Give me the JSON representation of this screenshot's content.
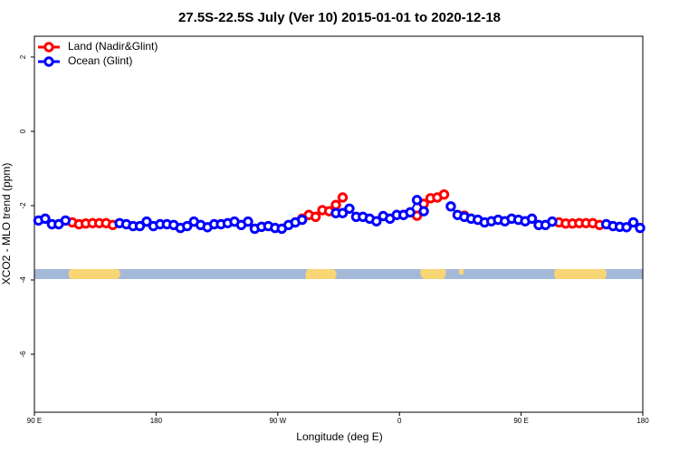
{
  "chart_data": {
    "type": "line",
    "title": "27.5S-22.5S July (Ver 10)   2015-01-01 to 2020-12-18",
    "x_label": "Longitude (deg E)",
    "y_label": "XCO2 - MLO trend (ppm)",
    "x": [
      93,
      98,
      103,
      108,
      113,
      118,
      123,
      128,
      133,
      138,
      143,
      148,
      153,
      158,
      163,
      168,
      173,
      178,
      183,
      188,
      193,
      198,
      203,
      208,
      213,
      218,
      223,
      228,
      233,
      238,
      243,
      248,
      253,
      258,
      263,
      268,
      273,
      278,
      283,
      288,
      293,
      298,
      303,
      308,
      313,
      318,
      323,
      328,
      333,
      338,
      343,
      348,
      353,
      358,
      363,
      368,
      373,
      378,
      383,
      388,
      393,
      398,
      403,
      408,
      413,
      418,
      423,
      428,
      433,
      438,
      443,
      448,
      453,
      458,
      463,
      468,
      473,
      478,
      483,
      488,
      493,
      498,
      503,
      508,
      513,
      518,
      523,
      528,
      533,
      538
    ],
    "series": [
      {
        "name": "Land (Nadir&Glint)",
        "color": "#ff0000",
        "values": [
          null,
          null,
          null,
          null,
          null,
          -2.45,
          -2.5,
          -2.48,
          -2.47,
          -2.47,
          -2.47,
          -2.52,
          null,
          null,
          null,
          null,
          null,
          null,
          null,
          null,
          null,
          null,
          null,
          null,
          null,
          null,
          null,
          null,
          null,
          null,
          null,
          null,
          null,
          null,
          null,
          null,
          null,
          null,
          null,
          -2.35,
          -2.25,
          -2.3,
          -2.12,
          -2.15,
          -1.98,
          -1.78,
          null,
          null,
          null,
          null,
          null,
          null,
          null,
          null,
          null,
          null,
          -2.27,
          -1.95,
          -1.8,
          -1.78,
          -1.7,
          null,
          null,
          -2.27,
          null,
          null,
          null,
          null,
          null,
          null,
          null,
          null,
          null,
          null,
          null,
          null,
          null,
          -2.45,
          -2.48,
          -2.48,
          -2.47,
          -2.47,
          -2.47,
          -2.52,
          null,
          null,
          null,
          null,
          null,
          null
        ]
      },
      {
        "name": "Ocean (Glint)",
        "color": "#0000ff",
        "values": [
          -2.4,
          -2.35,
          -2.5,
          -2.5,
          -2.4,
          null,
          null,
          null,
          null,
          null,
          null,
          null,
          -2.47,
          -2.5,
          -2.55,
          -2.55,
          -2.43,
          -2.55,
          -2.5,
          -2.5,
          -2.52,
          -2.6,
          -2.55,
          -2.43,
          -2.52,
          -2.58,
          -2.5,
          -2.5,
          -2.47,
          -2.43,
          -2.52,
          -2.43,
          -2.62,
          -2.57,
          -2.55,
          -2.6,
          -2.62,
          -2.52,
          -2.45,
          -2.38,
          null,
          null,
          null,
          null,
          -2.2,
          -2.2,
          -2.08,
          -2.3,
          -2.3,
          -2.35,
          -2.42,
          -2.28,
          -2.35,
          -2.25,
          -2.25,
          -2.18,
          -1.85,
          -2.15,
          null,
          null,
          null,
          -2.02,
          -2.25,
          -2.3,
          -2.35,
          -2.38,
          -2.45,
          -2.42,
          -2.38,
          -2.42,
          -2.35,
          -2.38,
          -2.42,
          -2.35,
          -2.52,
          -2.52,
          -2.43,
          null,
          null,
          null,
          null,
          null,
          null,
          null,
          -2.5,
          -2.55,
          -2.57,
          -2.58,
          -2.45,
          -2.6
        ]
      }
    ],
    "xlim": [
      90,
      540
    ],
    "xticks": [
      {
        "value": 90,
        "label": "90 E"
      },
      {
        "value": 180,
        "label": "180"
      },
      {
        "value": 270,
        "label": "90 W"
      },
      {
        "value": 360,
        "label": "0"
      },
      {
        "value": 450,
        "label": "90 E"
      },
      {
        "value": 540,
        "label": "180"
      }
    ],
    "ylim": [
      -7.56,
      2.56
    ],
    "yticks": [
      2,
      0,
      -2,
      -4,
      -6
    ],
    "legend": "top-left"
  }
}
